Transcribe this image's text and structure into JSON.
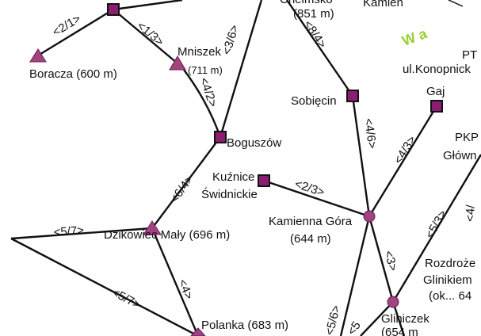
{
  "colors": {
    "node_fill": "#8b1e6e",
    "node_stroke": "#111111",
    "peak_fill": "#a0437f",
    "road": "#111111",
    "text_green": "#9acd32"
  },
  "places": {
    "top_cut_name": "Chełmsko",
    "top_cut_alt": "(851 m)",
    "kamien": "Kamień",
    "wa_text": "W a",
    "pt_text": "PT",
    "konopnicka": "ul.Konopnick",
    "boracza": "Boracza (600 m)",
    "mniszek": "Mniszek",
    "mniszek_alt": "(711 m)",
    "sobiecin": "Sobięcin",
    "gaj": "Gaj",
    "pkp1": "PKP",
    "pkp2": "Główn",
    "boguszow": "Boguszów",
    "kuznice1": "Kuźnice",
    "kuznice2": "Świdnickie",
    "kamienna1": "Kamienna Góra",
    "kamienna2": "(644 m)",
    "dzikowiec": "Dzikowiec Mały (696 m)",
    "rozdroze1": "Rozdroże",
    "rozdroze2": "Glinikiem",
    "rozdroze3": "(ok... 64",
    "gliniczek": "Gliniczek",
    "gliniczek_alt": "(654 m",
    "polanka": "Polanka (683 m)"
  },
  "segments": {
    "s_2_1": "<2/1>",
    "s_1_3": "<1/3>",
    "s_3_6": "<3/6>",
    "s_8_4": "<8/4>",
    "s_4_2": "<4/2>",
    "s_4_6": "<4/6>",
    "s_4_3": "<4/3>",
    "s_6_4": "<6/4>",
    "s_2_3": "<2/3>",
    "s_5_7a": "<5/7>",
    "s_5_7b": "<5/7>",
    "s_4": "<4>",
    "s_3": "<3>",
    "s_5_3": "<5/3>",
    "s_5_6": "<5/6>",
    "s_5_cut": "<5",
    "s_4_cut": "<4/"
  }
}
